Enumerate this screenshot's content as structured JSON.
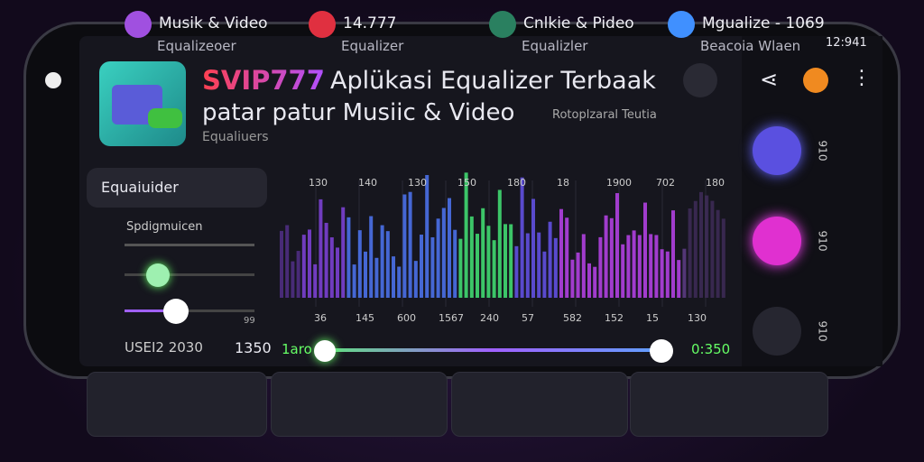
{
  "status_bar": {
    "time": "12:941"
  },
  "app": {
    "brand": "SVIP777",
    "title": "Aplükasi Equalizer Terbaak",
    "subtitle": "patar patur Musiic & Video",
    "category": "Equaliuers",
    "tag": "Rotoplzaral Teutia"
  },
  "sidebar": {
    "menu": "Equaiuider",
    "section": "Spdigmuicen",
    "slider_label": "99"
  },
  "equalizer": {
    "top_labels": [
      "130",
      "140",
      "130",
      "150",
      "180",
      "18",
      "1900",
      "702",
      "180"
    ],
    "bottom_labels": [
      "36",
      "145",
      "600",
      "1567",
      "240",
      "57",
      "582",
      "152",
      "15",
      "130"
    ]
  },
  "playback": {
    "label": "USEI2 2030",
    "time": "1350",
    "start": "1aro",
    "end": "0:350"
  },
  "side_labels": [
    "910",
    "910",
    "910"
  ],
  "cards": [
    {
      "title": "Musik & Video",
      "subtitle": "Equalizeoer"
    },
    {
      "title": "14.777",
      "subtitle": "Equalizer"
    },
    {
      "title": "Cnlkie & Pideo",
      "subtitle": "Equalizler"
    },
    {
      "title": "Mgualize - 1069",
      "subtitle": "Beacoia Wlaen"
    }
  ]
}
